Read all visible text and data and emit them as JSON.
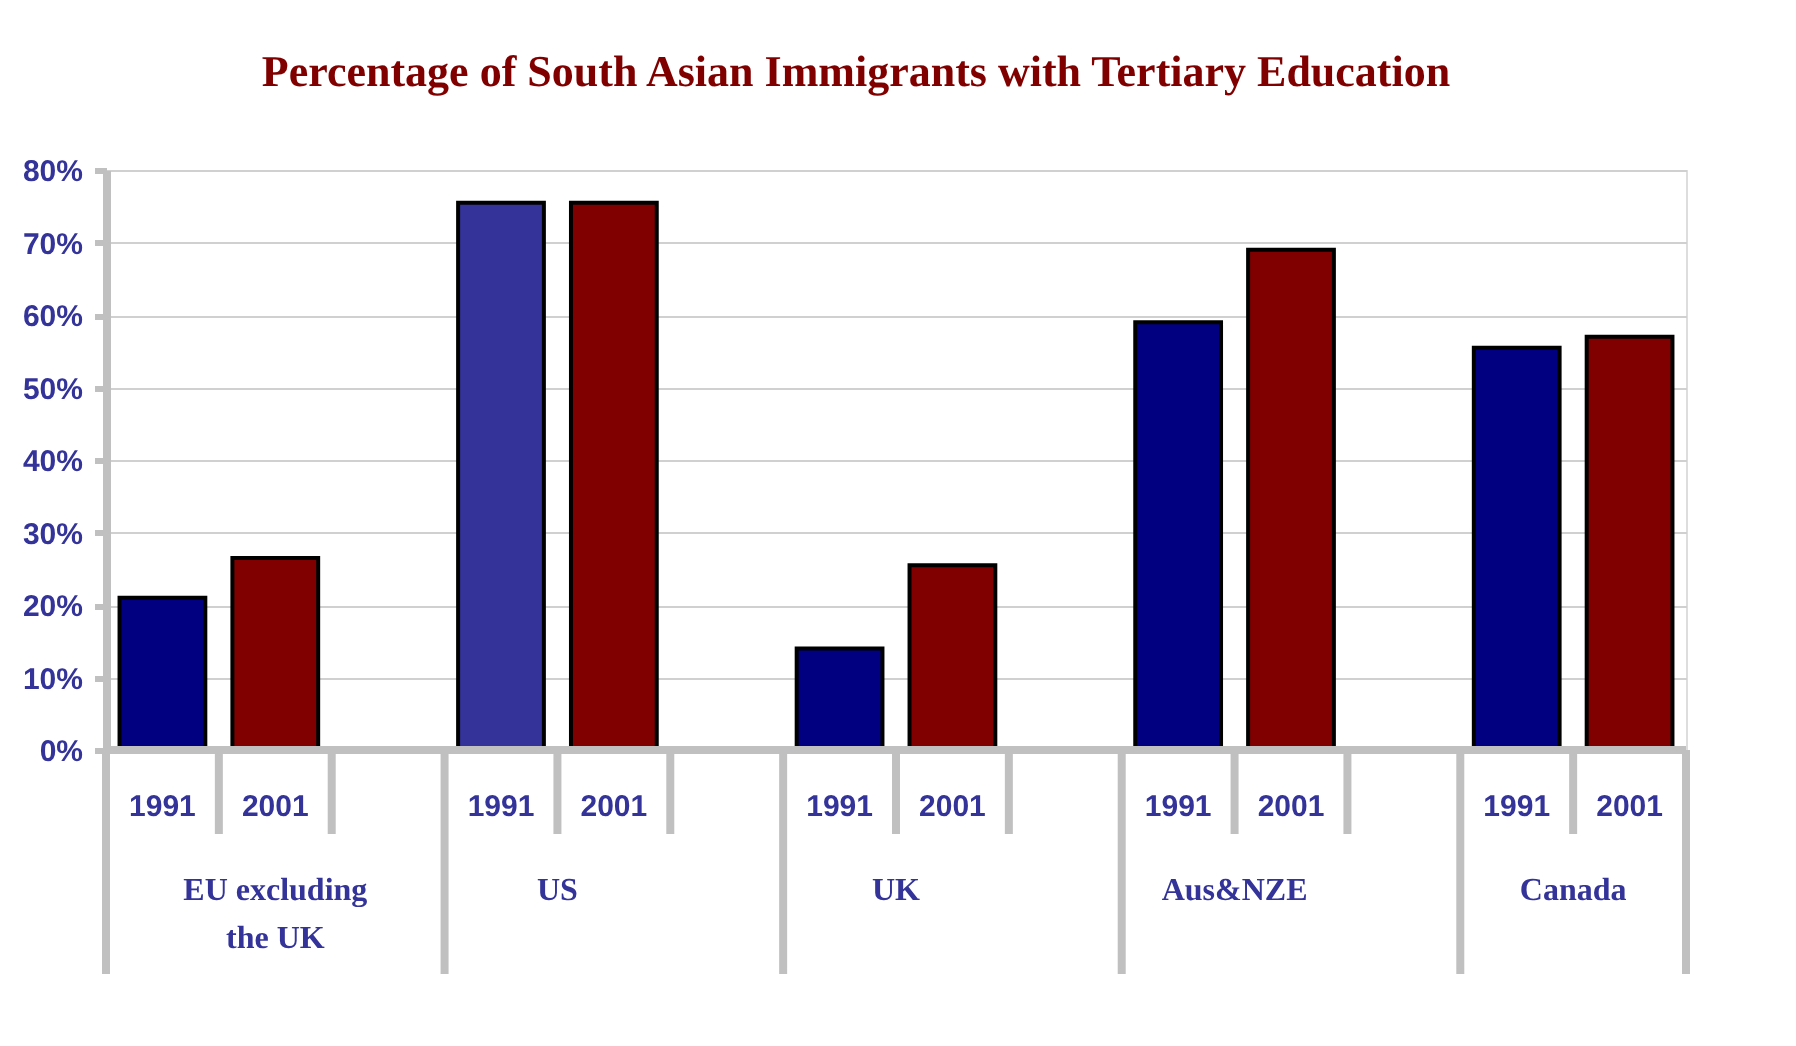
{
  "chart_data": {
    "type": "bar",
    "title": "Percentage of South Asian Immigrants with Tertiary Education",
    "categories": [
      "EU excluding the UK",
      "US",
      "UK",
      "Aus&NZE",
      "Canada"
    ],
    "series": [
      {
        "name": "1991",
        "colors": [
          "#000080",
          "#333399",
          "#000080",
          "#000080",
          "#000080"
        ],
        "values": [
          21,
          75.5,
          14,
          59,
          55.5
        ]
      },
      {
        "name": "2001",
        "color": "#800000",
        "values": [
          26.5,
          75.5,
          25.5,
          69,
          57
        ]
      }
    ],
    "ylim": [
      0,
      80
    ],
    "yticks": [
      {
        "value": 0,
        "label": "0%"
      },
      {
        "value": 10,
        "label": "10%"
      },
      {
        "value": 20,
        "label": "20%"
      },
      {
        "value": 30,
        "label": "30%"
      },
      {
        "value": 40,
        "label": "40%"
      },
      {
        "value": 50,
        "label": "50%"
      },
      {
        "value": 60,
        "label": "60%"
      },
      {
        "value": 70,
        "label": "70%"
      },
      {
        "value": 80,
        "label": "80%"
      }
    ],
    "grid": "y",
    "legend": false
  }
}
